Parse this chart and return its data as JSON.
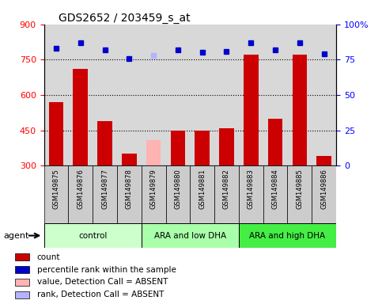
{
  "title": "GDS2652 / 203459_s_at",
  "samples": [
    "GSM149875",
    "GSM149876",
    "GSM149877",
    "GSM149878",
    "GSM149879",
    "GSM149880",
    "GSM149881",
    "GSM149882",
    "GSM149883",
    "GSM149884",
    "GSM149885",
    "GSM149886"
  ],
  "counts": [
    570,
    710,
    490,
    350,
    null,
    450,
    450,
    460,
    770,
    500,
    770,
    340
  ],
  "absent_value": 410,
  "absent_idx": 4,
  "percentile_ranks": [
    83,
    87,
    82,
    76,
    null,
    82,
    80,
    81,
    87,
    82,
    87,
    79
  ],
  "absent_rank": 78,
  "bar_color": "#cc0000",
  "absent_bar_color": "#ffb3b3",
  "dot_color": "#0000cc",
  "absent_dot_color": "#b3b3ff",
  "ylim_left": [
    300,
    900
  ],
  "ylim_right": [
    0,
    100
  ],
  "yticks_left": [
    300,
    450,
    600,
    750,
    900
  ],
  "yticks_right": [
    0,
    25,
    50,
    75,
    100
  ],
  "hlines": [
    450,
    600,
    750
  ],
  "plot_bg": "#d8d8d8",
  "label_bg": "#cccccc",
  "groups": [
    {
      "label": "control",
      "start": 0,
      "end": 3,
      "color": "#ccffcc"
    },
    {
      "label": "ARA and low DHA",
      "start": 4,
      "end": 7,
      "color": "#aaffaa"
    },
    {
      "label": "ARA and high DHA",
      "start": 8,
      "end": 11,
      "color": "#44ee44"
    }
  ],
  "agent_label": "agent",
  "legend_items": [
    {
      "color": "#cc0000",
      "label": "count"
    },
    {
      "color": "#0000cc",
      "label": "percentile rank within the sample"
    },
    {
      "color": "#ffb3b3",
      "label": "value, Detection Call = ABSENT"
    },
    {
      "color": "#b3b3ff",
      "label": "rank, Detection Call = ABSENT"
    }
  ]
}
